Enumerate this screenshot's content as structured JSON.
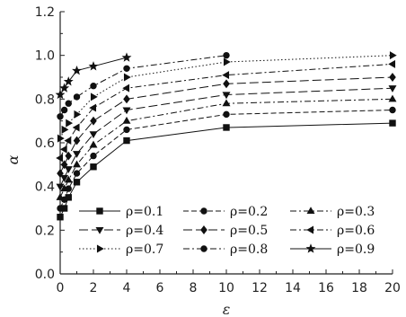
{
  "chart_data": {
    "type": "line",
    "title": "",
    "xlabel": "ε",
    "ylabel": "α",
    "xlim": [
      0,
      20
    ],
    "ylim": [
      0.0,
      1.2
    ],
    "xticks": [
      "0",
      "2",
      "4",
      "6",
      "8",
      "10",
      "12",
      "14",
      "16",
      "18",
      "20"
    ],
    "yticks": [
      "0.0",
      "0.2",
      "0.4",
      "0.6",
      "0.8",
      "1.0",
      "1.2"
    ],
    "grid": false,
    "legend_placement": "bottom-center",
    "series": [
      {
        "name": "ρ=0.1",
        "marker": "square",
        "dash": "solid",
        "x": [
          0,
          0.25,
          0.5,
          1,
          2,
          4,
          10,
          20
        ],
        "y": [
          0.26,
          0.3,
          0.35,
          0.42,
          0.49,
          0.61,
          0.67,
          0.69
        ]
      },
      {
        "name": "ρ=0.2",
        "marker": "circle",
        "dash": "dashed",
        "x": [
          0,
          0.25,
          0.5,
          1,
          2,
          4,
          10,
          20
        ],
        "y": [
          0.3,
          0.34,
          0.39,
          0.46,
          0.54,
          0.66,
          0.73,
          0.75
        ]
      },
      {
        "name": "ρ=0.3",
        "marker": "triangle-up",
        "dash": "dashdot",
        "x": [
          0,
          0.25,
          0.5,
          1,
          2,
          4,
          10,
          20
        ],
        "y": [
          0.35,
          0.39,
          0.43,
          0.5,
          0.59,
          0.7,
          0.78,
          0.8
        ]
      },
      {
        "name": "ρ=0.4",
        "marker": "triangle-down",
        "dash": "longdash",
        "x": [
          0,
          0.25,
          0.5,
          1,
          2,
          4,
          10,
          20
        ],
        "y": [
          0.4,
          0.44,
          0.48,
          0.55,
          0.64,
          0.75,
          0.82,
          0.85
        ]
      },
      {
        "name": "ρ=0.5",
        "marker": "diamond",
        "dash": "longdash",
        "x": [
          0,
          0.25,
          0.5,
          1,
          2,
          4,
          10,
          20
        ],
        "y": [
          0.46,
          0.5,
          0.54,
          0.61,
          0.7,
          0.8,
          0.87,
          0.9
        ]
      },
      {
        "name": "ρ=0.6",
        "marker": "triangle-left",
        "dash": "dashdot",
        "x": [
          0,
          0.25,
          0.5,
          1,
          2,
          4,
          10,
          20
        ],
        "y": [
          0.53,
          0.57,
          0.61,
          0.67,
          0.76,
          0.85,
          0.91,
          0.96
        ]
      },
      {
        "name": "ρ=0.7",
        "marker": "triangle-right",
        "dash": "dotted",
        "x": [
          0,
          0.25,
          0.5,
          1,
          2,
          4,
          10,
          20
        ],
        "y": [
          0.62,
          0.66,
          0.69,
          0.73,
          0.81,
          0.9,
          0.97,
          1.0
        ]
      },
      {
        "name": "ρ=0.8",
        "marker": "circle",
        "dash": "dashdot",
        "x": [
          0,
          0.25,
          0.5,
          1,
          2,
          4,
          10
        ],
        "y": [
          0.72,
          0.75,
          0.78,
          0.81,
          0.86,
          0.94,
          1.0
        ]
      },
      {
        "name": "ρ=0.9",
        "marker": "star",
        "dash": "solid",
        "x": [
          0,
          0.25,
          0.5,
          1,
          2,
          4
        ],
        "y": [
          0.82,
          0.85,
          0.88,
          0.93,
          0.95,
          0.99
        ]
      }
    ]
  }
}
